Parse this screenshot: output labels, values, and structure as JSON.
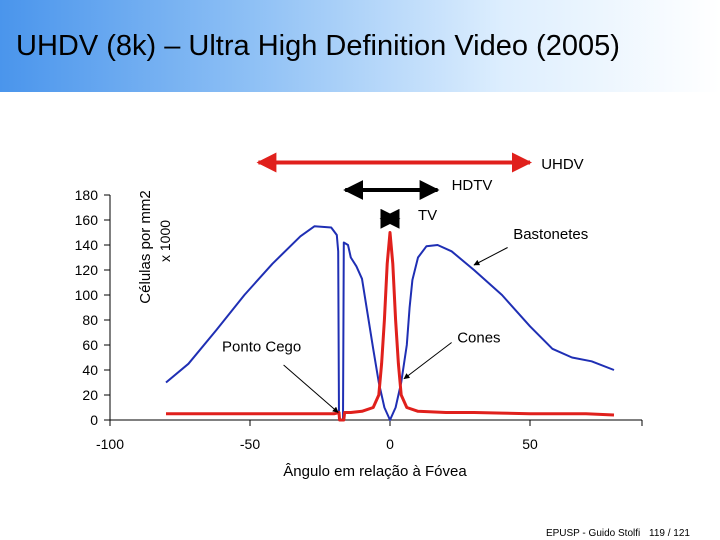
{
  "slide": {
    "title": "UHDV (8k) – Ultra High Definition Video (2005)",
    "footer": "EPUSP - Guido Stolfi",
    "page": "119 / 121"
  },
  "chart_data": {
    "type": "line",
    "xlabel": "Ângulo em relação à Fóvea",
    "ylabel": "Células por mm2",
    "ylabel2": "x 1000",
    "xlim": [
      -100,
      90
    ],
    "ylim": [
      0,
      180
    ],
    "xticks": [
      -100,
      -50,
      0,
      50
    ],
    "yticks": [
      0,
      20,
      40,
      60,
      80,
      100,
      120,
      140,
      160,
      180
    ],
    "grid": false,
    "series": [
      {
        "name": "Bastonetes",
        "color": "#1f2fb4",
        "points": [
          [
            -80,
            30
          ],
          [
            -72,
            45
          ],
          [
            -62,
            72
          ],
          [
            -52,
            100
          ],
          [
            -42,
            125
          ],
          [
            -32,
            147
          ],
          [
            -27,
            155
          ],
          [
            -21,
            154
          ],
          [
            -19,
            148
          ],
          [
            -18.5,
            135
          ],
          [
            -18.2,
            0
          ],
          [
            -16.8,
            0
          ],
          [
            -16.5,
            142
          ],
          [
            -15,
            140
          ],
          [
            -14,
            130
          ],
          [
            -12,
            123
          ],
          [
            -10,
            113
          ],
          [
            -8,
            85
          ],
          [
            -6,
            57
          ],
          [
            -4,
            30
          ],
          [
            -2,
            10
          ],
          [
            0,
            0
          ],
          [
            2,
            10
          ],
          [
            4,
            30
          ],
          [
            6,
            60
          ],
          [
            7,
            90
          ],
          [
            8,
            112
          ],
          [
            10,
            130
          ],
          [
            13,
            139
          ],
          [
            17,
            140
          ],
          [
            22,
            135
          ],
          [
            30,
            120
          ],
          [
            40,
            100
          ],
          [
            50,
            75
          ],
          [
            58,
            57
          ],
          [
            65,
            50
          ],
          [
            72,
            47
          ],
          [
            80,
            40
          ]
        ]
      },
      {
        "name": "Cones",
        "color": "#e0201c",
        "points": [
          [
            -80,
            5
          ],
          [
            -70,
            5
          ],
          [
            -60,
            5
          ],
          [
            -50,
            5
          ],
          [
            -40,
            5
          ],
          [
            -30,
            5
          ],
          [
            -20,
            5
          ],
          [
            -18.2,
            6
          ],
          [
            -18,
            0
          ],
          [
            -16.5,
            0
          ],
          [
            -16.2,
            6
          ],
          [
            -14,
            6
          ],
          [
            -10,
            7
          ],
          [
            -6,
            10
          ],
          [
            -4,
            20
          ],
          [
            -3,
            45
          ],
          [
            -2,
            80
          ],
          [
            -1,
            125
          ],
          [
            0,
            150
          ],
          [
            1,
            125
          ],
          [
            2,
            80
          ],
          [
            3,
            45
          ],
          [
            4,
            20
          ],
          [
            6,
            10
          ],
          [
            10,
            7
          ],
          [
            20,
            6
          ],
          [
            30,
            6
          ],
          [
            40,
            5.5
          ],
          [
            50,
            5
          ],
          [
            60,
            5
          ],
          [
            70,
            5
          ],
          [
            80,
            4
          ]
        ]
      }
    ],
    "annotations": [
      {
        "text": "Bastonetes",
        "x": 44,
        "y": 145
      },
      {
        "text": "Cones",
        "x": 24,
        "y": 62
      },
      {
        "text": "Ponto Cego",
        "x": -60,
        "y": 55
      },
      {
        "text": "HDTV",
        "x": 22,
        "y": 184
      },
      {
        "text": "TV",
        "x": 10,
        "y": 160
      },
      {
        "text": "UHDV",
        "x": 54,
        "y": 201
      }
    ],
    "ranges": [
      {
        "label": "UHDV",
        "from": -47,
        "to": 50,
        "y": 206,
        "color": "#e0201c"
      },
      {
        "label": "HDTV",
        "from": -16,
        "to": 17,
        "y": 184,
        "color": "#000000"
      },
      {
        "label": "TV",
        "from": -3,
        "to": 3,
        "y": 161,
        "color": "#000000"
      }
    ]
  }
}
